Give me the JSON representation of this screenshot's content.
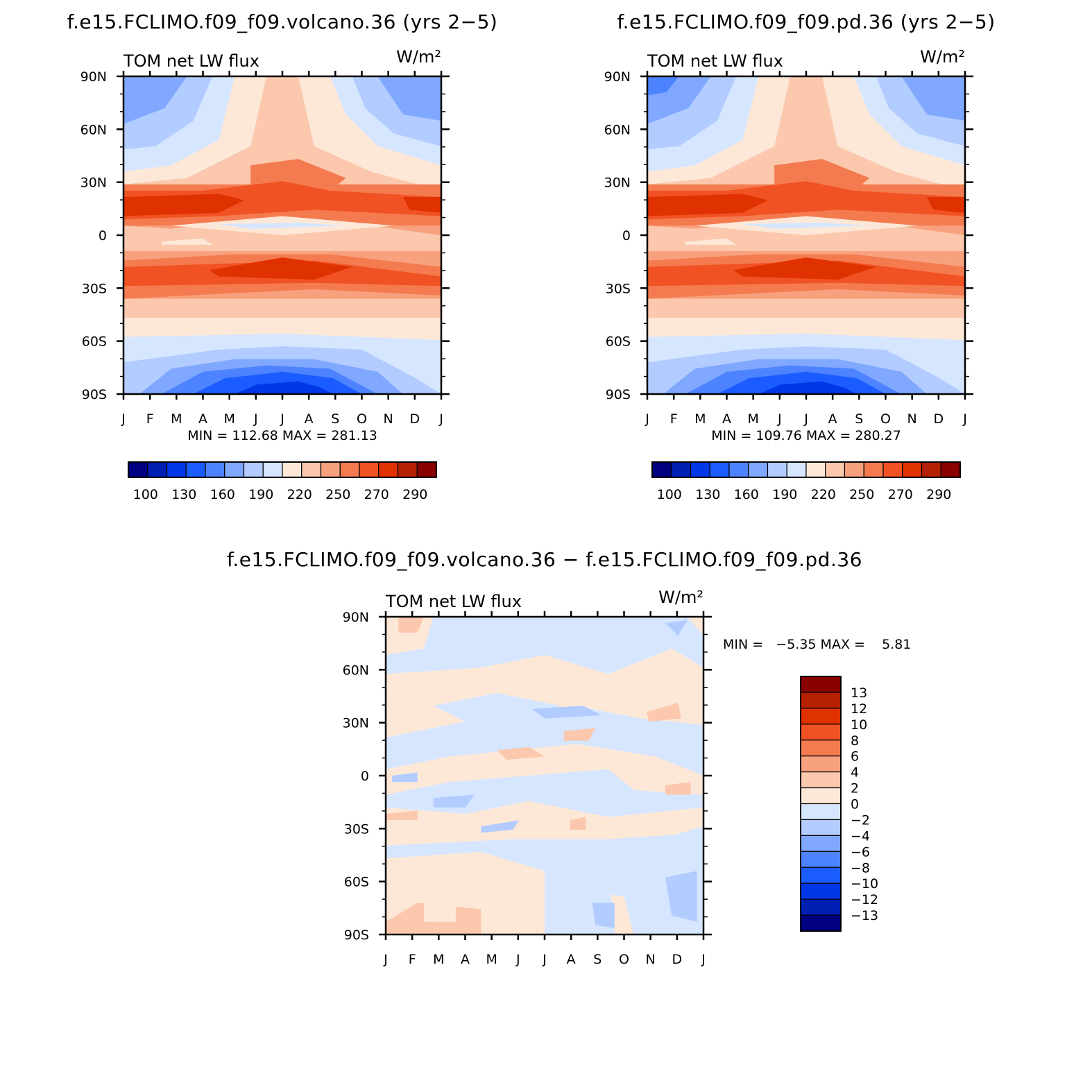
{
  "palette": {
    "diverging": [
      "#000080",
      "#001fb3",
      "#0037e6",
      "#1a5cff",
      "#4d83ff",
      "#80a8ff",
      "#b3ccff",
      "#d6e6ff",
      "#fde8d8",
      "#fbc8ae",
      "#f8a17e",
      "#f47b50",
      "#f15223",
      "#e03200",
      "#b42000",
      "#880000"
    ],
    "difference": [
      "#000080",
      "#001fb3",
      "#0037e6",
      "#1a5cff",
      "#4d83ff",
      "#80a8ff",
      "#b3ccff",
      "#d6e6ff",
      "#fde8d8",
      "#fbc8ae",
      "#f8a17e",
      "#f47b50",
      "#f15223",
      "#e03200",
      "#b42000",
      "#880000"
    ]
  },
  "months": [
    "J",
    "F",
    "M",
    "A",
    "M",
    "J",
    "J",
    "A",
    "S",
    "O",
    "N",
    "D",
    "J"
  ],
  "lat_labels": [
    "90N",
    "60N",
    "30N",
    "0",
    "30S",
    "60S",
    "90S"
  ],
  "chart_data": [
    {
      "type": "heatmap",
      "title": "f.e15.FCLIMO.f09_f09.volcano.36 (yrs 2−5)",
      "left_label": "TOM net LW flux",
      "units_label": "W/m²",
      "stats": "MIN = 112.68 MAX = 281.13",
      "min": 112.68,
      "max": 281.13,
      "x": "month (Jan–Jan)",
      "y": "latitude (90N–90S)",
      "colorbar_labels": [
        "100",
        "130",
        "160",
        "190",
        "220",
        "250",
        "270",
        "290"
      ]
    },
    {
      "type": "heatmap",
      "title": "f.e15.FCLIMO.f09_f09.pd.36 (yrs 2−5)",
      "left_label": "TOM net LW flux",
      "units_label": "W/m²",
      "stats": "MIN = 109.76 MAX = 280.27",
      "min": 109.76,
      "max": 280.27,
      "colorbar_labels": [
        "100",
        "130",
        "160",
        "190",
        "220",
        "250",
        "270",
        "290"
      ]
    },
    {
      "type": "heatmap",
      "title": "f.e15.FCLIMO.f09_f09.volcano.36 − f.e15.FCLIMO.f09_f09.pd.36",
      "left_label": "TOM net LW flux",
      "units_label": "W/m²",
      "stats": "MIN =   −5.35 MAX =    5.81",
      "min": -5.35,
      "max": 5.81,
      "colorbar_labels": [
        "13",
        "12",
        "10",
        "8",
        "6",
        "4",
        "2",
        "0",
        "−2",
        "−4",
        "−6",
        "−8",
        "−10",
        "−12",
        "−13"
      ]
    }
  ]
}
